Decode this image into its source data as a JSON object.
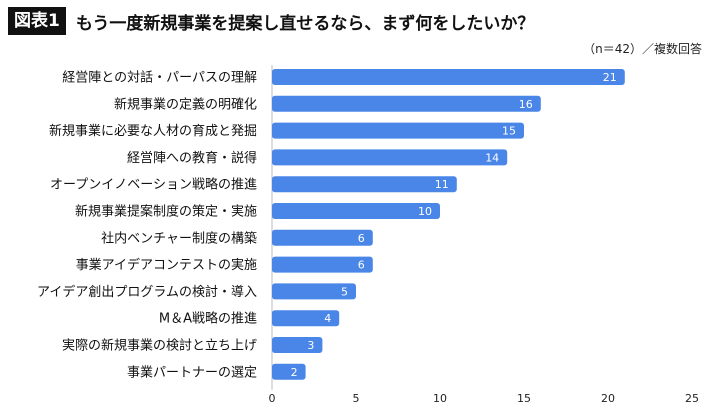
{
  "header": {
    "badge": "図表1",
    "title": "もう一度新規事業を提案し直せるなら、まず何をしたいか？"
  },
  "note": "（n＝42）／複数回答",
  "chart_data": {
    "type": "bar",
    "orientation": "horizontal",
    "categories": [
      "経営陣との対話・パーパスの理解",
      "新規事業の定義の明確化",
      "新規事業に必要な人材の育成と発掘",
      "経営陣への教育・説得",
      "オープンイノベーション戦略の推進",
      "新規事業提案制度の策定・実施",
      "社内ベンチャー制度の構築",
      "事業アイデアコンテストの実施",
      "アイデア創出プログラムの検討・導入",
      "M＆A戦略の推進",
      "実際の新規事業の検討と立ち上げ",
      "事業パートナーの選定"
    ],
    "values": [
      21,
      16,
      15,
      14,
      11,
      10,
      6,
      6,
      5,
      4,
      3,
      2
    ],
    "xlim": [
      0,
      25
    ],
    "xticks": [
      0,
      5,
      10,
      15,
      20,
      25
    ],
    "bar_color": "#4a86e8",
    "grid": false
  }
}
